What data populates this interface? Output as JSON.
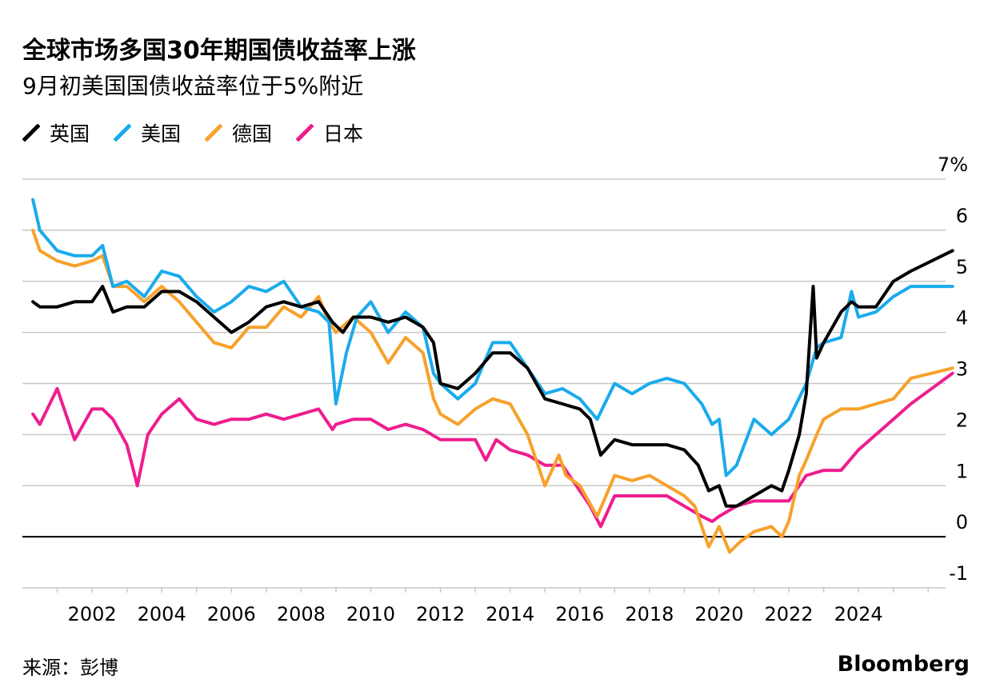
{
  "title": "全球市场多国30年期国债收益率上涨",
  "subtitle": "9月初美国国债收益率位于5%附近",
  "source": "来源：彭博",
  "brand": "Bloomberg",
  "colors": {
    "uk": "#000000",
    "us": "#1aabeb",
    "de": "#f7a12b",
    "jp": "#ee1d8f",
    "grid": "#c8c8c8",
    "zero": "#000000"
  },
  "chart_data": {
    "type": "line",
    "title": "全球市场多国30年期国债收益率上涨",
    "subtitle": "9月初美国国债收益率位于5%附近",
    "xlabel": "",
    "ylabel": "",
    "xlim": [
      2000.0,
      2026.5
    ],
    "ylim": [
      -1,
      7
    ],
    "y_ticks": [
      -1,
      0,
      1,
      2,
      3,
      4,
      5,
      6,
      7
    ],
    "y_tick_labels": [
      "-1",
      "0",
      "1",
      "2",
      "3",
      "4",
      "5",
      "6",
      "7%"
    ],
    "x_ticks": [
      2002,
      2004,
      2006,
      2008,
      2010,
      2012,
      2014,
      2016,
      2018,
      2020,
      2022,
      2024
    ],
    "x_tick_labels": [
      "2002",
      "2004",
      "2006",
      "2008",
      "2010",
      "2012",
      "2014",
      "2016",
      "2018",
      "2020",
      "2022",
      "2024"
    ],
    "grid": true,
    "legend_position": "top-left",
    "series": [
      {
        "name": "英国",
        "color": "#000000",
        "x": [
          2000.3,
          2000.5,
          2001.0,
          2001.5,
          2002.0,
          2002.3,
          2002.6,
          2003.0,
          2003.5,
          2004.0,
          2004.5,
          2005.0,
          2005.5,
          2006.0,
          2006.5,
          2007.0,
          2007.5,
          2008.0,
          2008.5,
          2008.9,
          2009.2,
          2009.5,
          2010.0,
          2010.5,
          2011.0,
          2011.5,
          2011.8,
          2012.0,
          2012.5,
          2013.0,
          2013.5,
          2014.0,
          2014.5,
          2015.0,
          2015.5,
          2016.0,
          2016.3,
          2016.6,
          2017.0,
          2017.5,
          2018.0,
          2018.5,
          2019.0,
          2019.4,
          2019.7,
          2020.0,
          2020.2,
          2020.5,
          2021.0,
          2021.5,
          2021.8,
          2022.0,
          2022.3,
          2022.5,
          2022.7,
          2022.8,
          2023.0,
          2023.5,
          2023.8,
          2024.0,
          2024.5,
          2025.0,
          2025.5,
          2026.7
        ],
        "y": [
          4.6,
          4.5,
          4.5,
          4.6,
          4.6,
          4.9,
          4.4,
          4.5,
          4.5,
          4.8,
          4.8,
          4.6,
          4.3,
          4.0,
          4.2,
          4.5,
          4.6,
          4.5,
          4.6,
          4.2,
          4.0,
          4.3,
          4.3,
          4.2,
          4.3,
          4.1,
          3.8,
          3.0,
          2.9,
          3.2,
          3.6,
          3.6,
          3.3,
          2.7,
          2.6,
          2.5,
          2.3,
          1.6,
          1.9,
          1.8,
          1.8,
          1.8,
          1.7,
          1.4,
          0.9,
          1.0,
          0.6,
          0.6,
          0.8,
          1.0,
          0.9,
          1.3,
          2.0,
          2.8,
          4.9,
          3.5,
          3.8,
          4.4,
          4.6,
          4.5,
          4.5,
          5.0,
          5.2,
          5.6
        ]
      },
      {
        "name": "美国",
        "color": "#1aabeb",
        "x": [
          2000.3,
          2000.5,
          2001.0,
          2001.5,
          2002.0,
          2002.3,
          2002.6,
          2003.0,
          2003.5,
          2004.0,
          2004.5,
          2005.0,
          2005.5,
          2006.0,
          2006.5,
          2007.0,
          2007.5,
          2008.0,
          2008.5,
          2008.8,
          2009.0,
          2009.3,
          2009.6,
          2010.0,
          2010.5,
          2011.0,
          2011.5,
          2011.8,
          2012.0,
          2012.5,
          2013.0,
          2013.5,
          2014.0,
          2014.5,
          2015.0,
          2015.5,
          2016.0,
          2016.5,
          2017.0,
          2017.5,
          2018.0,
          2018.5,
          2019.0,
          2019.5,
          2019.8,
          2020.0,
          2020.2,
          2020.5,
          2021.0,
          2021.5,
          2022.0,
          2022.5,
          2022.8,
          2023.0,
          2023.5,
          2023.8,
          2024.0,
          2024.5,
          2025.0,
          2025.5,
          2026.7
        ],
        "y": [
          6.6,
          6.0,
          5.6,
          5.5,
          5.5,
          5.7,
          4.9,
          5.0,
          4.7,
          5.2,
          5.1,
          4.7,
          4.4,
          4.6,
          4.9,
          4.8,
          5.0,
          4.5,
          4.4,
          4.2,
          2.6,
          3.6,
          4.3,
          4.6,
          4.0,
          4.4,
          4.1,
          3.2,
          3.0,
          2.7,
          3.0,
          3.8,
          3.8,
          3.3,
          2.8,
          2.9,
          2.7,
          2.3,
          3.0,
          2.8,
          3.0,
          3.1,
          3.0,
          2.6,
          2.2,
          2.3,
          1.2,
          1.4,
          2.3,
          2.0,
          2.3,
          3.0,
          3.7,
          3.8,
          3.9,
          4.8,
          4.3,
          4.4,
          4.7,
          4.9,
          4.9
        ]
      },
      {
        "name": "德国",
        "color": "#f7a12b",
        "x": [
          2000.3,
          2000.5,
          2001.0,
          2001.5,
          2002.0,
          2002.3,
          2002.6,
          2003.0,
          2003.5,
          2004.0,
          2004.5,
          2005.0,
          2005.5,
          2006.0,
          2006.5,
          2007.0,
          2007.5,
          2008.0,
          2008.5,
          2008.8,
          2009.0,
          2009.5,
          2010.0,
          2010.5,
          2011.0,
          2011.5,
          2011.8,
          2012.0,
          2012.5,
          2013.0,
          2013.5,
          2014.0,
          2014.5,
          2015.0,
          2015.4,
          2015.6,
          2016.0,
          2016.5,
          2017.0,
          2017.5,
          2018.0,
          2018.5,
          2019.0,
          2019.3,
          2019.7,
          2020.0,
          2020.3,
          2020.6,
          2021.0,
          2021.5,
          2021.8,
          2022.0,
          2022.3,
          2022.5,
          2022.8,
          2023.0,
          2023.5,
          2023.8,
          2024.0,
          2024.5,
          2025.0,
          2025.5,
          2026.7
        ],
        "y": [
          6.0,
          5.6,
          5.4,
          5.3,
          5.4,
          5.5,
          4.9,
          4.9,
          4.6,
          4.9,
          4.6,
          4.2,
          3.8,
          3.7,
          4.1,
          4.1,
          4.5,
          4.3,
          4.7,
          4.2,
          4.0,
          4.3,
          4.0,
          3.4,
          3.9,
          3.6,
          2.7,
          2.4,
          2.2,
          2.5,
          2.7,
          2.6,
          2.0,
          1.0,
          1.6,
          1.2,
          1.0,
          0.4,
          1.2,
          1.1,
          1.2,
          1.0,
          0.8,
          0.6,
          -0.2,
          0.2,
          -0.3,
          -0.1,
          0.1,
          0.2,
          0.0,
          0.3,
          1.2,
          1.5,
          2.0,
          2.3,
          2.5,
          2.5,
          2.5,
          2.6,
          2.7,
          3.1,
          3.3
        ]
      },
      {
        "name": "日本",
        "color": "#ee1d8f",
        "x": [
          2000.3,
          2000.5,
          2001.0,
          2001.5,
          2002.0,
          2002.3,
          2002.6,
          2003.0,
          2003.3,
          2003.6,
          2004.0,
          2004.5,
          2005.0,
          2005.5,
          2006.0,
          2006.5,
          2007.0,
          2007.5,
          2008.0,
          2008.5,
          2008.9,
          2009.0,
          2009.5,
          2010.0,
          2010.5,
          2011.0,
          2011.5,
          2012.0,
          2012.5,
          2013.0,
          2013.3,
          2013.6,
          2014.0,
          2014.5,
          2015.0,
          2015.5,
          2016.0,
          2016.3,
          2016.6,
          2017.0,
          2017.5,
          2018.0,
          2018.5,
          2019.0,
          2019.5,
          2019.8,
          2020.0,
          2020.5,
          2021.0,
          2021.5,
          2022.0,
          2022.5,
          2023.0,
          2023.5,
          2024.0,
          2024.5,
          2025.0,
          2025.5,
          2026.7
        ],
        "y": [
          2.4,
          2.2,
          2.9,
          1.9,
          2.5,
          2.5,
          2.3,
          1.8,
          1.0,
          2.0,
          2.4,
          2.7,
          2.3,
          2.2,
          2.3,
          2.3,
          2.4,
          2.3,
          2.4,
          2.5,
          2.1,
          2.2,
          2.3,
          2.3,
          2.1,
          2.2,
          2.1,
          1.9,
          1.9,
          1.9,
          1.5,
          1.9,
          1.7,
          1.6,
          1.4,
          1.4,
          0.9,
          0.6,
          0.2,
          0.8,
          0.8,
          0.8,
          0.8,
          0.6,
          0.4,
          0.3,
          0.4,
          0.6,
          0.7,
          0.7,
          0.7,
          1.2,
          1.3,
          1.3,
          1.7,
          2.0,
          2.3,
          2.6,
          3.2
        ]
      }
    ]
  }
}
